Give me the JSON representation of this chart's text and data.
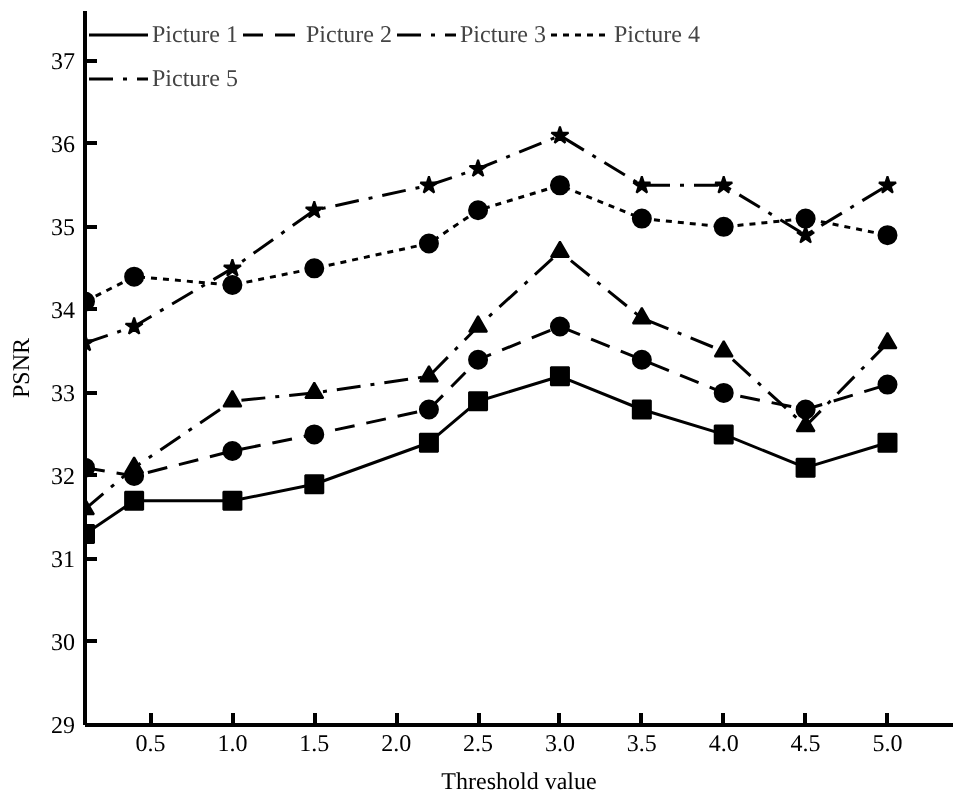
{
  "chart_data": {
    "type": "line",
    "xlabel": "Threshold value",
    "ylabel": "PSNR",
    "x": [
      0.1,
      0.4,
      1.0,
      1.5,
      2.2,
      2.5,
      3.0,
      3.5,
      4.0,
      4.5,
      5.0
    ],
    "series": [
      {
        "name": "Picture 1",
        "color": "#000000",
        "marker": "square",
        "line_style": "solid",
        "values": [
          31.3,
          31.7,
          31.7,
          31.9,
          32.4,
          32.9,
          33.2,
          32.8,
          32.5,
          32.1,
          32.4
        ]
      },
      {
        "name": "Picture 2",
        "color": "#000000",
        "marker": "circle",
        "line_style": "dashed",
        "values": [
          32.1,
          32.0,
          32.3,
          32.5,
          32.8,
          33.4,
          33.8,
          33.4,
          33.0,
          32.8,
          33.1
        ]
      },
      {
        "name": "Picture 3",
        "color": "#000000",
        "marker": "triangle",
        "line_style": "dashdot",
        "values": [
          31.6,
          32.1,
          32.9,
          33.0,
          33.2,
          33.8,
          34.7,
          33.9,
          33.5,
          32.6,
          33.6
        ]
      },
      {
        "name": "Picture 4",
        "color": "#000000",
        "marker": "circle",
        "line_style": "dotted",
        "values": [
          34.1,
          34.4,
          34.3,
          34.5,
          34.8,
          35.2,
          35.5,
          35.1,
          35.0,
          35.1,
          34.9
        ]
      },
      {
        "name": "Picture 5",
        "color": "#000000",
        "marker": "star",
        "line_style": "dashdot",
        "values": [
          33.6,
          33.8,
          34.5,
          35.2,
          35.5,
          35.7,
          36.1,
          35.5,
          35.5,
          34.9,
          35.5
        ]
      }
    ],
    "xlim": [
      0.1,
      5.4
    ],
    "ylim": [
      29,
      37.6
    ],
    "xticks": [
      0.5,
      {
        "value": 1.0,
        "label": "1.0"
      },
      1.5,
      {
        "value": 2.0,
        "label": "2.0"
      },
      2.5,
      {
        "value": 3.0,
        "label": "3.0"
      },
      3.5,
      {
        "value": 4.0,
        "label": "4.0"
      },
      4.5,
      {
        "value": 5.0,
        "label": "5.0"
      }
    ],
    "yticks": [
      29,
      30,
      31,
      32,
      33,
      34,
      35,
      36,
      37
    ],
    "grid": false,
    "legend": "top"
  }
}
